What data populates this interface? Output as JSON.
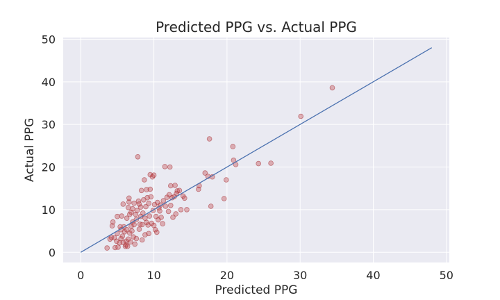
{
  "chart_data": {
    "type": "scatter",
    "title": "Predicted PPG vs. Actual PPG",
    "xlabel": "Predicted PPG",
    "ylabel": "Actual PPG",
    "xlim": [
      -2.4,
      50.4
    ],
    "ylim": [
      -2.4,
      50.4
    ],
    "xticks": [
      0,
      10,
      20,
      30,
      40,
      50
    ],
    "yticks": [
      0,
      10,
      20,
      30,
      40,
      50
    ],
    "grid": true,
    "style": {
      "background": "#eaeaf2",
      "grid_color": "#ffffff",
      "point_fill": "#c44e52",
      "point_edge": "#a3262a",
      "line_color": "#4c72b0",
      "text_color": "#262626"
    },
    "reference_line": {
      "x": [
        0,
        48
      ],
      "y": [
        0,
        48
      ]
    },
    "points": [
      [
        3.6,
        1.0
      ],
      [
        4.0,
        3.1
      ],
      [
        4.2,
        3.5
      ],
      [
        4.3,
        6.2
      ],
      [
        4.4,
        7.1
      ],
      [
        4.6,
        3.4
      ],
      [
        4.7,
        1.1
      ],
      [
        4.9,
        2.6
      ],
      [
        5.0,
        4.4
      ],
      [
        5.0,
        8.4
      ],
      [
        5.1,
        1.2
      ],
      [
        5.3,
        2.2
      ],
      [
        5.4,
        6.0
      ],
      [
        5.5,
        3.2
      ],
      [
        5.5,
        5.3
      ],
      [
        5.6,
        8.5
      ],
      [
        5.7,
        3.8
      ],
      [
        5.8,
        2.3
      ],
      [
        5.9,
        6.0
      ],
      [
        6.0,
        4.8
      ],
      [
        5.8,
        11.3
      ],
      [
        6.1,
        1.4
      ],
      [
        6.2,
        2.6
      ],
      [
        6.2,
        1.7
      ],
      [
        6.3,
        5.3
      ],
      [
        6.3,
        8.0
      ],
      [
        6.4,
        1.4
      ],
      [
        6.5,
        3.1
      ],
      [
        6.5,
        10.5
      ],
      [
        6.6,
        11.8
      ],
      [
        6.6,
        12.7
      ],
      [
        6.7,
        4.5
      ],
      [
        6.7,
        8.9
      ],
      [
        6.8,
        2.4
      ],
      [
        6.9,
        6.1
      ],
      [
        6.9,
        9.4
      ],
      [
        7.0,
        5.0
      ],
      [
        7.1,
        7.1
      ],
      [
        7.1,
        10.2
      ],
      [
        7.2,
        3.6
      ],
      [
        7.3,
        6.5
      ],
      [
        7.3,
        11.5
      ],
      [
        7.4,
        1.9
      ],
      [
        7.5,
        8.9
      ],
      [
        7.6,
        3.2
      ],
      [
        7.6,
        7.7
      ],
      [
        7.7,
        9.8
      ],
      [
        7.8,
        22.4
      ],
      [
        7.9,
        12.0
      ],
      [
        8.0,
        5.4
      ],
      [
        8.0,
        11.3
      ],
      [
        8.1,
        6.6
      ],
      [
        8.2,
        8.4
      ],
      [
        8.2,
        10.6
      ],
      [
        8.3,
        14.5
      ],
      [
        8.4,
        2.9
      ],
      [
        8.4,
        6.5
      ],
      [
        8.5,
        9.2
      ],
      [
        8.6,
        12.3
      ],
      [
        8.7,
        17.0
      ],
      [
        8.8,
        4.1
      ],
      [
        8.8,
        8.0
      ],
      [
        8.9,
        10.7
      ],
      [
        9.0,
        14.7
      ],
      [
        9.0,
        7.0
      ],
      [
        9.1,
        12.8
      ],
      [
        9.2,
        6.4
      ],
      [
        9.3,
        11.5
      ],
      [
        9.3,
        4.4
      ],
      [
        9.4,
        8.5
      ],
      [
        9.5,
        18.2
      ],
      [
        9.5,
        14.8
      ],
      [
        9.6,
        13.0
      ],
      [
        9.7,
        6.8
      ],
      [
        9.8,
        17.7
      ],
      [
        9.9,
        9.8
      ],
      [
        10.0,
        6.3
      ],
      [
        10.0,
        18.1
      ],
      [
        10.1,
        11.2
      ],
      [
        10.2,
        5.3
      ],
      [
        10.3,
        8.4
      ],
      [
        10.4,
        4.7
      ],
      [
        10.5,
        11.7
      ],
      [
        10.6,
        7.6
      ],
      [
        10.7,
        10.4
      ],
      [
        10.8,
        9.7
      ],
      [
        10.9,
        11.1
      ],
      [
        11.0,
        8.2
      ],
      [
        11.2,
        6.7
      ],
      [
        11.3,
        12.1
      ],
      [
        11.5,
        20.1
      ],
      [
        11.6,
        10.8
      ],
      [
        11.8,
        12.9
      ],
      [
        12.0,
        9.6
      ],
      [
        12.1,
        13.5
      ],
      [
        12.2,
        20.0
      ],
      [
        12.3,
        11.0
      ],
      [
        12.3,
        15.6
      ],
      [
        12.5,
        12.8
      ],
      [
        12.6,
        8.2
      ],
      [
        12.8,
        13.1
      ],
      [
        12.9,
        15.7
      ],
      [
        13.0,
        9.0
      ],
      [
        13.1,
        13.8
      ],
      [
        13.2,
        14.4
      ],
      [
        13.5,
        14.5
      ],
      [
        13.7,
        10.0
      ],
      [
        14.0,
        13.2
      ],
      [
        14.2,
        12.7
      ],
      [
        14.5,
        10.0
      ],
      [
        16.1,
        14.8
      ],
      [
        16.2,
        15.6
      ],
      [
        17.0,
        18.6
      ],
      [
        17.4,
        17.8
      ],
      [
        17.6,
        26.6
      ],
      [
        17.8,
        10.8
      ],
      [
        18.0,
        17.7
      ],
      [
        19.6,
        12.6
      ],
      [
        19.9,
        17.0
      ],
      [
        20.8,
        24.8
      ],
      [
        20.9,
        21.6
      ],
      [
        21.2,
        20.6
      ],
      [
        24.3,
        20.8
      ],
      [
        26.0,
        20.9
      ],
      [
        30.1,
        31.9
      ],
      [
        34.4,
        38.6
      ]
    ]
  }
}
